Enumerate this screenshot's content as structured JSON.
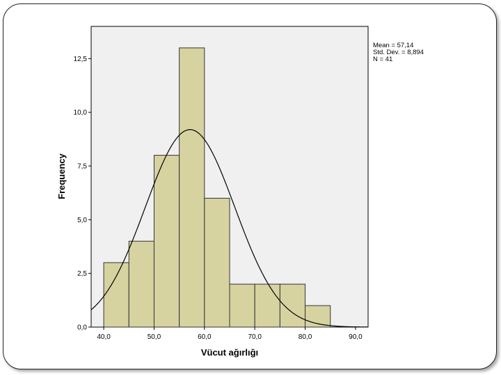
{
  "chart_data": {
    "type": "bar",
    "subtype": "histogram",
    "title": "",
    "xlabel": "Vücut ağırlığı",
    "ylabel": "Frequency",
    "xlim": [
      37.5,
      92.5
    ],
    "ylim": [
      0,
      14
    ],
    "bins": [
      {
        "start": 40,
        "end": 45,
        "value": 3
      },
      {
        "start": 45,
        "end": 50,
        "value": 4
      },
      {
        "start": 50,
        "end": 55,
        "value": 8
      },
      {
        "start": 55,
        "end": 60,
        "value": 13
      },
      {
        "start": 60,
        "end": 65,
        "value": 6
      },
      {
        "start": 65,
        "end": 70,
        "value": 2
      },
      {
        "start": 70,
        "end": 75,
        "value": 2
      },
      {
        "start": 75,
        "end": 80,
        "value": 2
      },
      {
        "start": 80,
        "end": 85,
        "value": 1
      }
    ],
    "x_ticks": [
      {
        "value": 40,
        "label": "40,0"
      },
      {
        "value": 50,
        "label": "50,0"
      },
      {
        "value": 60,
        "label": "60,0"
      },
      {
        "value": 70,
        "label": "70,0"
      },
      {
        "value": 80,
        "label": "80,0"
      },
      {
        "value": 90,
        "label": "90,0"
      }
    ],
    "y_ticks": [
      {
        "value": 0,
        "label": "0,0"
      },
      {
        "value": 2.5,
        "label": "2,5"
      },
      {
        "value": 5,
        "label": "5,0"
      },
      {
        "value": 7.5,
        "label": "7,5"
      },
      {
        "value": 10,
        "label": "10,0"
      },
      {
        "value": 12.5,
        "label": "12,5"
      }
    ],
    "normal_curve": {
      "mean": 57.14,
      "std": 8.894,
      "n": 41,
      "bin_width": 5
    },
    "stats_lines": [
      "Mean = 57,14",
      "Std. Dev. = 8,894",
      "N = 41"
    ],
    "colors": {
      "bar_fill": "#d6d3a1",
      "bar_stroke": "#333333",
      "plot_bg": "#f0f0f0",
      "curve": "#000000"
    }
  }
}
